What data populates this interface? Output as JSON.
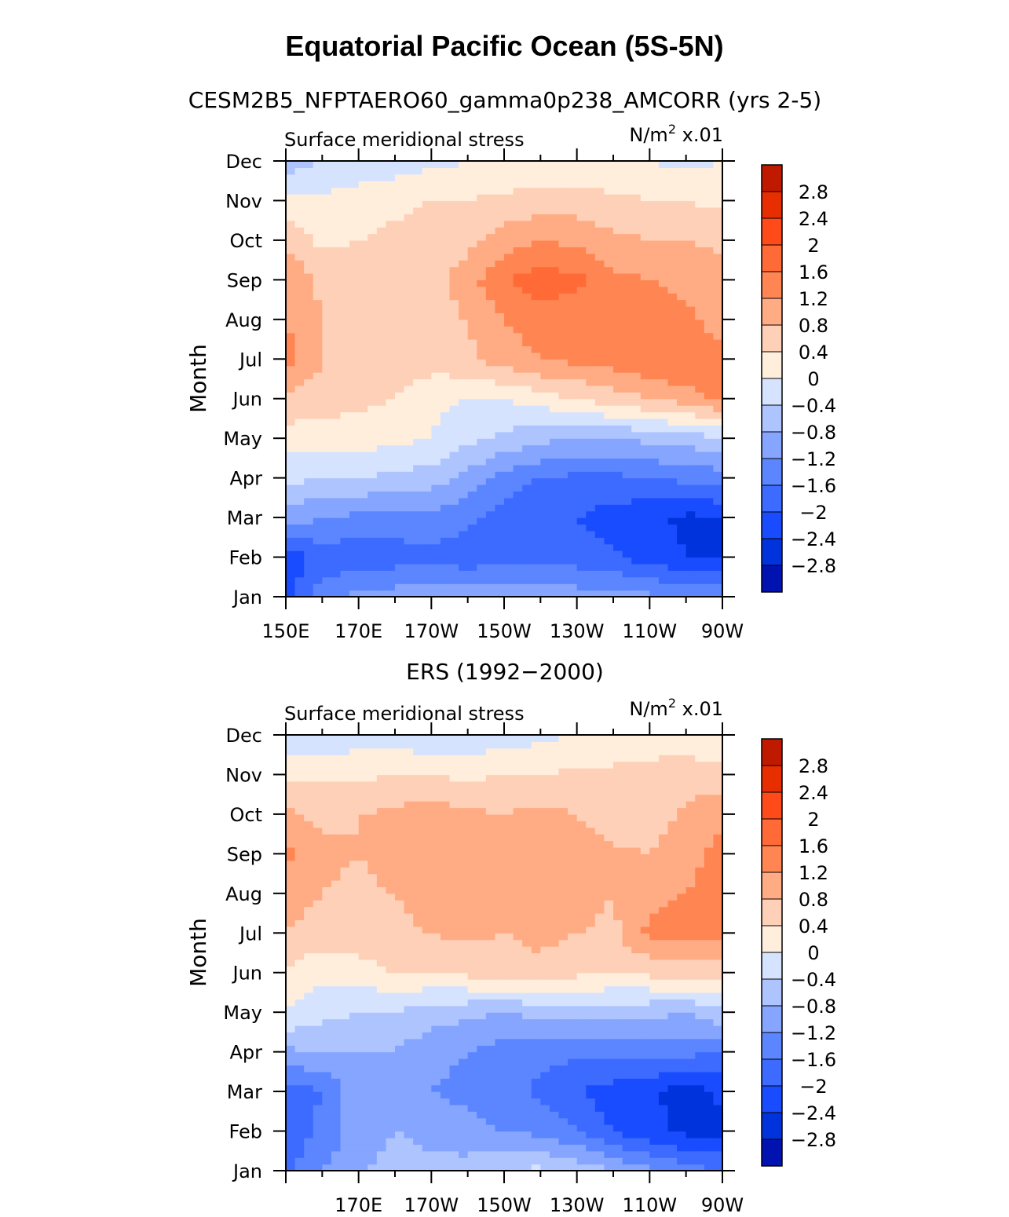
{
  "title": "Equatorial Pacific Ocean (5S-5N)",
  "colors": [
    "#00007f",
    "#0012b0",
    "#0033db",
    "#1a4cff",
    "#3d6bff",
    "#5b86ff",
    "#85a5ff",
    "#adc4ff",
    "#d6e3ff",
    "#ffeedc",
    "#ffd0b8",
    "#ffac84",
    "#ff8552",
    "#ff6a36",
    "#ff4a1a",
    "#e62e00",
    "#bf1a00",
    "#8c0000"
  ],
  "chart_data": [
    {
      "type": "heatmap",
      "title": "CESM2B5_NFPTAERO60_gamma0p238_AMCORR (yrs 2-5)",
      "left_label": "Surface meridional stress",
      "right_label_main": "N/m",
      "right_label_sup": "2",
      "right_label_scale": " x.01",
      "ylabel": "Month",
      "xlabel": "",
      "yticks": [
        "Jan",
        "Feb",
        "Mar",
        "Apr",
        "May",
        "Jun",
        "Jul",
        "Aug",
        "Sep",
        "Oct",
        "Nov",
        "Dec"
      ],
      "xticks": [
        "150E",
        "170E",
        "170W",
        "150W",
        "130W",
        "110W",
        "90W"
      ],
      "xtick_lons": [
        150,
        170,
        190,
        210,
        230,
        250,
        270
      ],
      "xlim": [
        150,
        270
      ],
      "colorbar_labels": [
        "2.8",
        "2.4",
        "2",
        "1.6",
        "1.2",
        "0.8",
        "0.4",
        "0",
        "−0.4",
        "−0.8",
        "−1.2",
        "−1.6",
        "−2",
        "−2.4",
        "−2.8"
      ],
      "lons": [
        150,
        160,
        170,
        180,
        190,
        200,
        210,
        220,
        230,
        240,
        250,
        260,
        270
      ],
      "values": [
        [
          -2.2,
          -1.4,
          -1.1,
          -1.0,
          -0.9,
          -0.8,
          -0.8,
          -0.9,
          -1.0,
          -1.1,
          -1.1,
          -1.2,
          -1.2
        ],
        [
          -2.3,
          -1.8,
          -1.9,
          -1.8,
          -1.7,
          -1.9,
          -1.8,
          -1.7,
          -1.8,
          -1.9,
          -2.2,
          -2.4,
          -2.5
        ],
        [
          -1.0,
          -1.2,
          -1.3,
          -1.4,
          -1.3,
          -1.5,
          -1.8,
          -1.9,
          -2.0,
          -2.2,
          -2.3,
          -2.5,
          -2.4
        ],
        [
          -0.3,
          -0.4,
          -0.4,
          -0.5,
          -0.6,
          -0.9,
          -1.4,
          -1.6,
          -1.7,
          -1.7,
          -1.6,
          -1.5,
          -1.4
        ],
        [
          0.2,
          0.2,
          0.2,
          0.1,
          0.0,
          -0.3,
          -0.5,
          -0.7,
          -0.8,
          -0.8,
          -0.7,
          -0.6,
          -0.5
        ],
        [
          0.7,
          0.6,
          0.5,
          0.4,
          0.1,
          0.0,
          0.0,
          0.2,
          0.4,
          0.6,
          0.8,
          1.0,
          1.3
        ],
        [
          1.4,
          0.8,
          0.7,
          0.6,
          0.6,
          0.7,
          1.0,
          1.2,
          1.3,
          1.4,
          1.6,
          1.6,
          1.3
        ],
        [
          1.2,
          0.8,
          0.7,
          0.6,
          0.7,
          0.8,
          1.2,
          1.4,
          1.4,
          1.4,
          1.4,
          1.3,
          1.0
        ],
        [
          1.2,
          0.7,
          0.6,
          0.5,
          0.6,
          1.0,
          1.6,
          1.8,
          1.7,
          1.3,
          1.2,
          1.1,
          1.0
        ],
        [
          0.7,
          0.3,
          0.4,
          0.5,
          0.6,
          0.7,
          1.0,
          1.2,
          1.1,
          0.9,
          0.8,
          0.8,
          0.7
        ],
        [
          0.1,
          0.1,
          0.2,
          0.3,
          0.4,
          0.4,
          0.5,
          0.6,
          0.6,
          0.5,
          0.4,
          0.4,
          0.3
        ],
        [
          -0.6,
          -0.4,
          -0.3,
          -0.2,
          -0.1,
          0.0,
          0.0,
          0.0,
          0.1,
          0.0,
          0.0,
          -0.1,
          0.0
        ]
      ]
    },
    {
      "type": "heatmap",
      "title": "ERS (1992−2000)",
      "left_label": "Surface meridional stress",
      "right_label_main": "N/m",
      "right_label_sup": "2",
      "right_label_scale": " x.01",
      "ylabel": "Month",
      "xlabel": "",
      "yticks": [
        "Jan",
        "Feb",
        "Mar",
        "Apr",
        "May",
        "Jun",
        "Jul",
        "Aug",
        "Sep",
        "Oct",
        "Nov",
        "Dec"
      ],
      "xticks": [
        "170E",
        "170W",
        "150W",
        "130W",
        "110W",
        "90W"
      ],
      "xtick_lons": [
        170,
        190,
        210,
        230,
        250,
        270
      ],
      "xlim": [
        150,
        270
      ],
      "colorbar_labels": [
        "2.8",
        "2.4",
        "2",
        "1.6",
        "1.2",
        "0.8",
        "0.4",
        "0",
        "−0.4",
        "−0.8",
        "−1.2",
        "−1.6",
        "−2",
        "−2.4",
        "−2.8"
      ],
      "lons": [
        150,
        160,
        170,
        180,
        190,
        200,
        210,
        220,
        230,
        240,
        250,
        260,
        270
      ],
      "values": [
        [
          -1.7,
          -1.2,
          -0.9,
          -0.6,
          -0.7,
          -0.6,
          -0.4,
          -0.3,
          -0.5,
          -0.8,
          -1.1,
          -1.4,
          -1.6
        ],
        [
          -1.9,
          -1.5,
          -1.0,
          -0.8,
          -0.9,
          -1.1,
          -1.2,
          -1.3,
          -1.6,
          -2.0,
          -2.3,
          -2.5,
          -2.5
        ],
        [
          -1.8,
          -1.6,
          -0.9,
          -0.8,
          -1.2,
          -1.3,
          -1.4,
          -1.7,
          -2.0,
          -2.2,
          -2.3,
          -2.6,
          -2.3
        ],
        [
          -0.9,
          -0.8,
          -0.8,
          -0.8,
          -1.1,
          -1.2,
          -1.4,
          -1.5,
          -1.5,
          -1.4,
          -1.4,
          -1.5,
          -1.6
        ],
        [
          0.0,
          -0.3,
          -0.4,
          -0.4,
          -0.6,
          -0.7,
          -0.8,
          -0.7,
          -0.6,
          -0.6,
          -0.7,
          -0.8,
          -0.5
        ],
        [
          0.3,
          0.1,
          0.2,
          0.4,
          0.4,
          0.5,
          0.6,
          0.7,
          0.5,
          0.4,
          0.5,
          0.6,
          0.6
        ],
        [
          0.8,
          0.6,
          0.7,
          0.7,
          0.8,
          0.9,
          0.8,
          0.9,
          0.8,
          0.7,
          1.3,
          1.4,
          1.3
        ],
        [
          1.0,
          0.8,
          0.7,
          0.8,
          1.0,
          1.0,
          0.9,
          1.0,
          1.0,
          0.8,
          1.1,
          1.2,
          1.4
        ],
        [
          1.3,
          0.9,
          0.8,
          1.0,
          1.1,
          1.0,
          1.0,
          1.1,
          1.0,
          0.9,
          0.8,
          1.0,
          1.4
        ],
        [
          0.9,
          0.7,
          0.8,
          0.9,
          1.0,
          0.9,
          0.8,
          0.9,
          0.8,
          0.5,
          0.6,
          0.9,
          1.1
        ],
        [
          0.3,
          0.3,
          0.3,
          0.4,
          0.4,
          0.3,
          0.4,
          0.4,
          0.5,
          0.5,
          0.6,
          0.6,
          0.5
        ],
        [
          -0.4,
          -0.3,
          -0.2,
          -0.2,
          -0.4,
          -0.3,
          -0.2,
          -0.1,
          0.0,
          0.1,
          0.1,
          0.2,
          0.1
        ]
      ]
    }
  ]
}
